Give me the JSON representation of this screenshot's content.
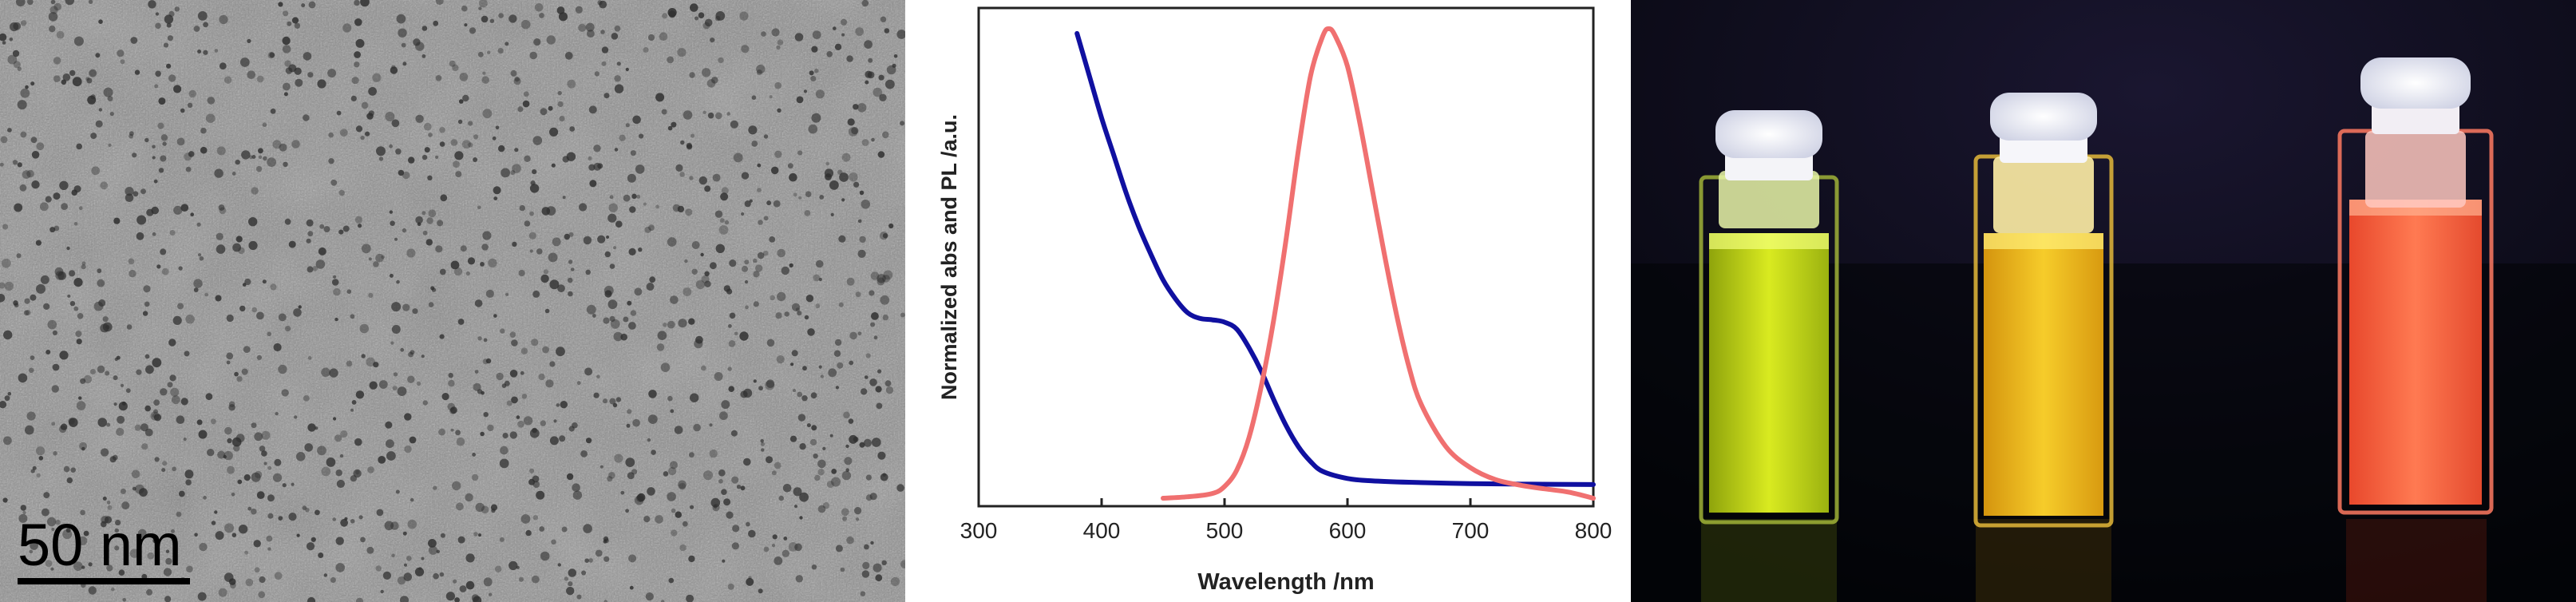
{
  "tem": {
    "scale_label": "50 nm"
  },
  "chart_data": {
    "type": "line",
    "title": "",
    "xlabel": "Wavelength /nm",
    "ylabel": "Normalized abs and PL /a.u.",
    "xlim": [
      300,
      800
    ],
    "ylim": [
      0,
      1
    ],
    "xticks": [
      300,
      400,
      500,
      600,
      700,
      800
    ],
    "yticks_shown": false,
    "grid": false,
    "legend": "none",
    "series": [
      {
        "color": "#1010a0",
        "x": [
          380,
          390,
          400,
          410,
          420,
          430,
          440,
          450,
          460,
          470,
          480,
          490,
          500,
          510,
          520,
          530,
          540,
          550,
          560,
          570,
          580,
          600,
          620,
          650,
          700,
          750,
          800
        ],
        "y": [
          0.99,
          0.9,
          0.81,
          0.73,
          0.65,
          0.58,
          0.52,
          0.465,
          0.425,
          0.395,
          0.383,
          0.38,
          0.375,
          0.36,
          0.32,
          0.27,
          0.21,
          0.155,
          0.11,
          0.078,
          0.057,
          0.042,
          0.037,
          0.034,
          0.031,
          0.03,
          0.029
        ]
      },
      {
        "color": "#f07070",
        "x": [
          450,
          470,
          490,
          500,
          510,
          520,
          530,
          540,
          550,
          560,
          570,
          580,
          585,
          590,
          600,
          610,
          620,
          630,
          640,
          650,
          660,
          680,
          700,
          720,
          740,
          760,
          780,
          800
        ],
        "y": [
          0.0,
          0.003,
          0.01,
          0.025,
          0.06,
          0.13,
          0.24,
          0.38,
          0.55,
          0.74,
          0.9,
          0.985,
          1.0,
          0.985,
          0.92,
          0.8,
          0.66,
          0.52,
          0.39,
          0.28,
          0.2,
          0.11,
          0.065,
          0.04,
          0.028,
          0.02,
          0.013,
          0.0
        ]
      }
    ]
  },
  "colors": {
    "abs_curve": "#1010a0",
    "pl_curve": "#f07070",
    "vial_green": "#c8dc18",
    "vial_yellow": "#f2c41a",
    "vial_orange": "#ff6a44",
    "photo_background": "#05060c"
  }
}
